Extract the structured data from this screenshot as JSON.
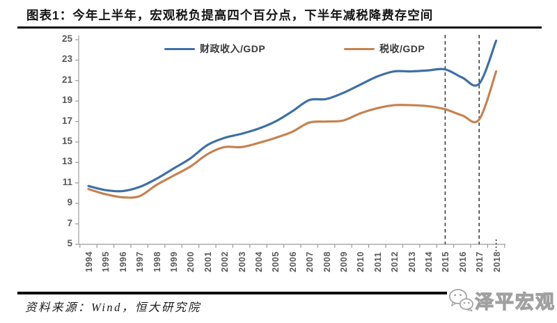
{
  "header": {
    "title": "图表1：今年上半年，宏观税负提高四个百分点，下半年减税降费存空间"
  },
  "footer": {
    "source_note": "资料来源：Wind，恒大研究院",
    "watermark_label": "泽平宏观",
    "watermark_icon": "wechat-icon"
  },
  "colors": {
    "fiscal_line": "#3E6FA6",
    "tax_line": "#C6824F",
    "axis": "#9b9b9b",
    "tick_label": "#595959",
    "dashed_line": "#3f3f3f",
    "rule": "#0a0a0a"
  },
  "chart_data": {
    "type": "line",
    "title": "",
    "x": [
      1994,
      1995,
      1996,
      1997,
      1998,
      1999,
      2000,
      2001,
      2002,
      2003,
      2004,
      2005,
      2006,
      2007,
      2008,
      2009,
      2010,
      2011,
      2012,
      2013,
      2014,
      2015,
      2016,
      2017,
      2018
    ],
    "series": [
      {
        "name": "财政收入/GDP",
        "color": "#3E6FA6",
        "values": [
          10.7,
          10.3,
          10.2,
          10.6,
          11.4,
          12.4,
          13.4,
          14.7,
          15.4,
          15.8,
          16.3,
          17.0,
          18.0,
          19.1,
          19.2,
          19.8,
          20.6,
          21.4,
          21.9,
          21.9,
          22.0,
          22.1,
          21.3,
          20.7,
          24.9
        ]
      },
      {
        "name": "税收/GDP",
        "color": "#C6824F",
        "values": [
          10.4,
          9.9,
          9.6,
          9.7,
          10.8,
          11.7,
          12.6,
          13.8,
          14.5,
          14.5,
          14.9,
          15.4,
          16.0,
          16.9,
          17.0,
          17.1,
          17.8,
          18.3,
          18.6,
          18.6,
          18.5,
          18.2,
          17.6,
          17.2,
          21.9
        ]
      }
    ],
    "ylim": [
      5,
      25
    ],
    "yticks": [
      5,
      7,
      9,
      11,
      13,
      15,
      17,
      19,
      21,
      23,
      25
    ],
    "grid": false,
    "legend_position": "top-center",
    "annotations": {
      "dashed_vlines_x": [
        2015,
        2017
      ],
      "dotted_tick_x": 2018
    }
  }
}
